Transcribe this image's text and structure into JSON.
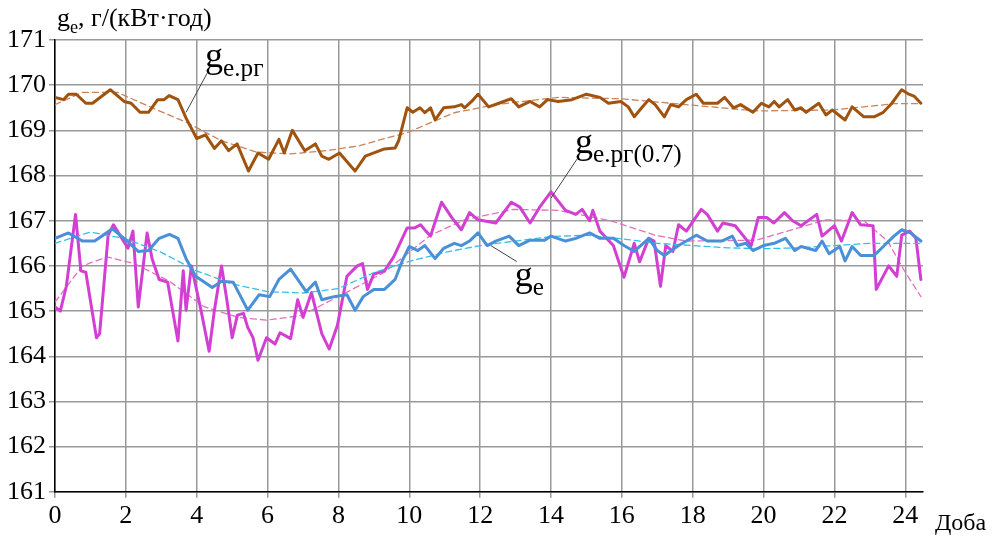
{
  "chart_data": {
    "type": "line",
    "ylabel": "g$_{e}$, г/(кВт·год)",
    "xlabel": "Доба",
    "xlim": [
      0,
      24.5
    ],
    "xticks": [
      0,
      2,
      4,
      6,
      8,
      10,
      12,
      14,
      16,
      18,
      20,
      22,
      24
    ],
    "ylim": [
      161,
      171
    ],
    "yticks": [
      161,
      162,
      163,
      164,
      165,
      166,
      167,
      168,
      169,
      170,
      171
    ],
    "grid": true,
    "legend": false,
    "marker": "none",
    "line_style": "solid",
    "series": [
      {
        "color": "#a0520f",
        "x": [
          0,
          0.24,
          0.38,
          0.6,
          0.87,
          1.06,
          1.56,
          1.95,
          2.15,
          2.4,
          2.64,
          2.9,
          3.08,
          3.22,
          3.47,
          3.7,
          4.0,
          4.25,
          4.5,
          4.7,
          4.9,
          5.14,
          5.46,
          5.73,
          6.03,
          6.32,
          6.47,
          6.7,
          7.05,
          7.35,
          7.53,
          7.73,
          8.03,
          8.47,
          8.76,
          9.0,
          9.3,
          9.6,
          9.7,
          9.94,
          10.1,
          10.3,
          10.44,
          10.6,
          10.73,
          10.97,
          11.27,
          11.47,
          11.56,
          11.76,
          11.94,
          12.24,
          12.53,
          12.88,
          13.09,
          13.41,
          13.68,
          13.9,
          14.2,
          14.59,
          15.0,
          15.38,
          15.62,
          15.97,
          16.18,
          16.35,
          16.56,
          16.76,
          16.94,
          17.2,
          17.38,
          17.6,
          17.82,
          18.1,
          18.3,
          18.7,
          18.9,
          19.15,
          19.35,
          19.7,
          19.94,
          20.15,
          20.3,
          20.44,
          20.68,
          20.88,
          21.06,
          21.2,
          21.56,
          21.76,
          21.94,
          22.3,
          22.5,
          22.83,
          23.12,
          23.38,
          23.62,
          23.9,
          24.1,
          24.26,
          24.44
        ],
        "values": [
          169.73,
          169.68,
          169.8,
          169.8,
          169.6,
          169.6,
          169.9,
          169.64,
          169.6,
          169.4,
          169.4,
          169.68,
          169.68,
          169.77,
          169.68,
          169.27,
          168.82,
          168.9,
          168.6,
          168.77,
          168.55,
          168.7,
          168.1,
          168.5,
          168.36,
          168.8,
          168.5,
          169.0,
          168.55,
          168.7,
          168.43,
          168.36,
          168.5,
          168.1,
          168.43,
          168.5,
          168.59,
          168.61,
          168.77,
          169.5,
          169.4,
          169.5,
          169.39,
          169.5,
          169.23,
          169.5,
          169.52,
          169.57,
          169.5,
          169.64,
          169.8,
          169.52,
          169.6,
          169.7,
          169.52,
          169.64,
          169.52,
          169.68,
          169.64,
          169.68,
          169.8,
          169.73,
          169.6,
          169.64,
          169.52,
          169.3,
          169.5,
          169.68,
          169.57,
          169.3,
          169.57,
          169.52,
          169.68,
          169.8,
          169.6,
          169.6,
          169.73,
          169.5,
          169.57,
          169.4,
          169.6,
          169.52,
          169.64,
          169.52,
          169.68,
          169.45,
          169.5,
          169.4,
          169.6,
          169.34,
          169.45,
          169.23,
          169.52,
          169.3,
          169.3,
          169.4,
          169.6,
          169.9,
          169.8,
          169.75,
          169.6
        ]
      },
      {
        "color": "#c8845a",
        "line_style": "dashed",
        "x": [
          0,
          0.77,
          1.76,
          2.74,
          3.7,
          4.7,
          5.68,
          6.65,
          7.65,
          8.6,
          9.3,
          9.94,
          11.27,
          12.44,
          14.2,
          15.97,
          17.8,
          19.8,
          21.94,
          23.7,
          24.44
        ],
        "values": [
          169.57,
          169.84,
          169.84,
          169.5,
          169.18,
          168.77,
          168.52,
          168.48,
          168.55,
          168.66,
          168.82,
          168.95,
          169.39,
          169.57,
          169.73,
          169.7,
          169.57,
          169.43,
          169.45,
          169.59,
          169.59
        ]
      },
      {
        "color": "#4a90d9",
        "x": [
          0,
          0.38,
          0.77,
          1.12,
          1.62,
          1.95,
          2.35,
          2.64,
          2.94,
          3.23,
          3.47,
          3.7,
          3.97,
          4.44,
          4.7,
          5.03,
          5.44,
          5.76,
          6.06,
          6.32,
          6.65,
          7.09,
          7.35,
          7.53,
          7.88,
          8.24,
          8.47,
          8.7,
          9.0,
          9.3,
          9.6,
          9.8,
          10.0,
          10.24,
          10.44,
          10.73,
          10.97,
          11.27,
          11.47,
          11.7,
          11.94,
          12.2,
          12.44,
          12.82,
          13.09,
          13.41,
          13.82,
          14.0,
          14.41,
          14.7,
          15.09,
          15.38,
          15.76,
          16.06,
          16.35,
          16.76,
          17.0,
          17.2,
          17.6,
          18.1,
          18.41,
          18.82,
          19.12,
          19.26,
          19.5,
          19.7,
          20.0,
          20.3,
          20.62,
          20.88,
          21.06,
          21.47,
          21.65,
          21.85,
          22.15,
          22.3,
          22.5,
          22.74,
          23.12,
          23.38,
          23.68,
          23.9,
          24.15,
          24.44
        ],
        "values": [
          166.61,
          166.73,
          166.55,
          166.55,
          166.82,
          166.61,
          166.32,
          166.34,
          166.61,
          166.7,
          166.61,
          166.16,
          165.77,
          165.52,
          165.66,
          165.64,
          165.02,
          165.36,
          165.32,
          165.7,
          165.93,
          165.43,
          165.64,
          165.25,
          165.32,
          165.36,
          165.02,
          165.32,
          165.48,
          165.48,
          165.7,
          166.11,
          166.43,
          166.34,
          166.45,
          166.16,
          166.39,
          166.5,
          166.45,
          166.55,
          166.73,
          166.45,
          166.55,
          166.66,
          166.45,
          166.57,
          166.57,
          166.66,
          166.55,
          166.61,
          166.73,
          166.61,
          166.61,
          166.45,
          166.32,
          166.61,
          166.34,
          166.23,
          166.45,
          166.68,
          166.55,
          166.55,
          166.66,
          166.45,
          166.5,
          166.34,
          166.45,
          166.5,
          166.61,
          166.34,
          166.43,
          166.34,
          166.55,
          166.27,
          166.43,
          166.11,
          166.43,
          166.23,
          166.23,
          166.43,
          166.66,
          166.8,
          166.73,
          166.55
        ]
      },
      {
        "color": "#33c0e8",
        "line_style": "dashed",
        "x": [
          0,
          1,
          2,
          3,
          4,
          5,
          6,
          7,
          8,
          9,
          10,
          11,
          12,
          13,
          14,
          15,
          16,
          17,
          18,
          19,
          20,
          21,
          22,
          23,
          24.44
        ],
        "values": [
          166.5,
          166.75,
          166.6,
          166.3,
          165.89,
          165.6,
          165.43,
          165.4,
          165.5,
          165.85,
          166.1,
          166.3,
          166.45,
          166.55,
          166.65,
          166.68,
          166.6,
          166.5,
          166.45,
          166.4,
          166.38,
          166.4,
          166.45,
          166.5,
          166.5
        ]
      },
      {
        "color": "#d23fd2",
        "x": [
          0,
          0.15,
          0.32,
          0.58,
          0.73,
          0.87,
          1.17,
          1.26,
          1.5,
          1.65,
          1.76,
          2.06,
          2.2,
          2.35,
          2.6,
          2.74,
          2.94,
          3.18,
          3.47,
          3.62,
          3.7,
          3.85,
          4.12,
          4.35,
          4.5,
          4.7,
          4.85,
          5.0,
          5.15,
          5.32,
          5.44,
          5.59,
          5.73,
          5.97,
          6.21,
          6.35,
          6.65,
          6.85,
          7.0,
          7.24,
          7.53,
          7.74,
          7.97,
          8.24,
          8.53,
          8.68,
          8.82,
          9.0,
          9.3,
          9.56,
          9.94,
          10.15,
          10.32,
          10.47,
          10.6,
          10.91,
          11.2,
          11.47,
          11.7,
          11.94,
          12.44,
          12.88,
          13.12,
          13.41,
          13.68,
          14.0,
          14.41,
          14.7,
          14.88,
          15.09,
          15.18,
          15.38,
          15.76,
          16.06,
          16.35,
          16.5,
          16.76,
          16.91,
          17.09,
          17.24,
          17.44,
          17.6,
          17.82,
          18.24,
          18.41,
          18.7,
          18.85,
          19.2,
          19.65,
          19.85,
          20.09,
          20.29,
          20.59,
          20.82,
          21.06,
          21.5,
          21.65,
          22.0,
          22.2,
          22.5,
          22.74,
          23.09,
          23.18,
          23.53,
          23.76,
          23.9,
          24.12,
          24.3,
          24.44
        ],
        "values": [
          165.09,
          165.0,
          165.55,
          167.14,
          165.89,
          165.86,
          164.41,
          164.5,
          166.68,
          166.91,
          166.77,
          166.39,
          166.77,
          165.09,
          166.73,
          166.16,
          165.7,
          165.64,
          164.34,
          165.89,
          165.02,
          166.0,
          165.02,
          164.11,
          165.02,
          166.0,
          165.25,
          164.41,
          164.91,
          164.95,
          164.64,
          164.41,
          163.91,
          164.41,
          164.27,
          164.52,
          164.39,
          165.25,
          164.86,
          165.41,
          164.5,
          164.16,
          164.68,
          165.77,
          166.0,
          166.05,
          165.48,
          165.82,
          165.89,
          166.2,
          166.84,
          166.84,
          166.91,
          166.77,
          166.66,
          167.41,
          167.07,
          166.8,
          167.18,
          167.02,
          166.95,
          167.41,
          167.3,
          166.95,
          167.3,
          167.64,
          167.23,
          167.14,
          167.25,
          167.0,
          167.23,
          166.77,
          166.45,
          165.75,
          166.5,
          166.09,
          166.61,
          166.55,
          165.55,
          166.45,
          166.32,
          166.91,
          166.77,
          167.25,
          167.14,
          166.77,
          166.95,
          166.89,
          166.45,
          167.07,
          167.07,
          166.95,
          167.18,
          167.0,
          166.89,
          167.14,
          166.66,
          166.89,
          166.55,
          167.18,
          166.91,
          166.89,
          165.48,
          166.0,
          165.77,
          166.68,
          166.77,
          166.61,
          165.7
        ]
      },
      {
        "color": "#e070c0",
        "line_style": "dashed",
        "x": [
          0,
          0.77,
          1.47,
          2.24,
          3.23,
          4.2,
          5.18,
          5.97,
          6.94,
          8.1,
          9.3,
          10.6,
          11.56,
          12.94,
          14.2,
          15.68,
          16.94,
          17.8,
          19.8,
          21.76,
          22.83,
          23.5,
          24.0,
          24.44
        ],
        "values": [
          165.2,
          166.0,
          166.2,
          166.05,
          165.66,
          165.1,
          164.86,
          164.8,
          164.9,
          165.36,
          165.86,
          166.68,
          167.02,
          167.25,
          167.23,
          167.0,
          166.68,
          166.55,
          166.57,
          167.02,
          167.0,
          166.55,
          165.86,
          165.32
        ]
      }
    ],
    "annotations": [
      {
        "text": "g$_{e.рг}$",
        "x": 3.7,
        "y": 169.4
      },
      {
        "text": "g$_{e.рг(0.7)}$",
        "x": 14.0,
        "y": 167.5
      },
      {
        "text": "g$_{e}$",
        "x": 12.3,
        "y": 166.45
      }
    ]
  }
}
